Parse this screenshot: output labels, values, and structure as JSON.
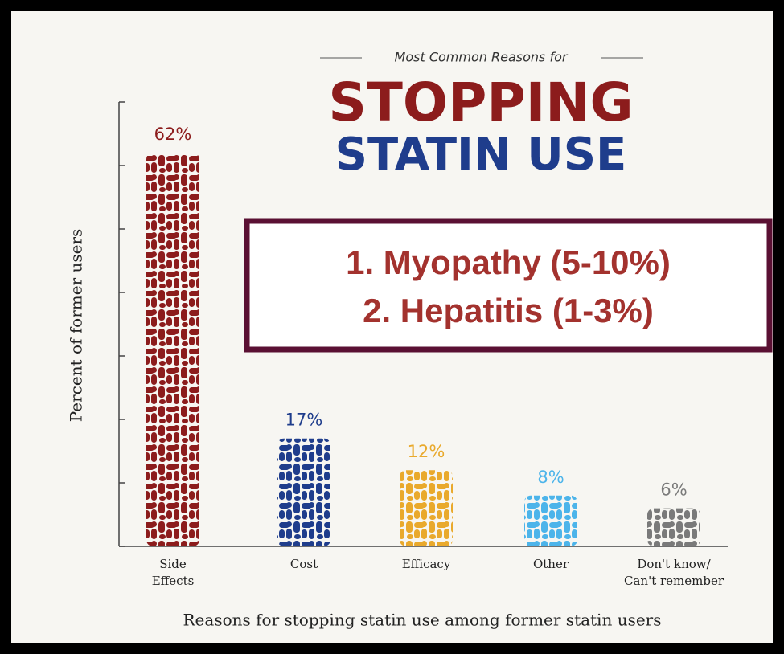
{
  "chart_data": {
    "type": "bar",
    "kicker": "Most Common Reasons for",
    "title": "STOPPING",
    "subtitle": "STATIN USE",
    "annotations": [
      "1. Myopathy (5-10%)",
      "2. Hepatitis (1-3%)"
    ],
    "ylabel": "Percent of former users",
    "xlabel": "Reasons for stopping statin use among former statin users",
    "categories": [
      "Side\nEffects",
      "Cost",
      "Efficacy",
      "Other",
      "Don't know/\nCan't remember"
    ],
    "values": [
      62,
      17,
      12,
      8,
      6
    ],
    "value_labels": [
      "62%",
      "17%",
      "12%",
      "8%",
      "6%"
    ],
    "colors": [
      "#8c1c1c",
      "#1f3d8c",
      "#e9a92c",
      "#4cb4ea",
      "#7a7a7a"
    ],
    "ylim": [
      0,
      70
    ],
    "yticks": [
      0,
      10,
      20,
      30,
      40,
      50,
      60,
      70
    ]
  }
}
